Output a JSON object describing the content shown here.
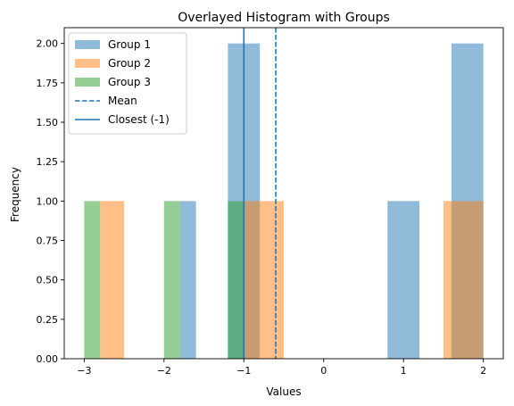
{
  "chart_data": {
    "type": "bar",
    "title": "Overlayed Histogram with Groups",
    "xlabel": "Values",
    "ylabel": "Frequency",
    "xlim": [
      -3.25,
      2.25
    ],
    "ylim": [
      0,
      2.1
    ],
    "xticks": [
      -3,
      -2,
      -1,
      0,
      1,
      2
    ],
    "yticks": [
      0.0,
      0.25,
      0.5,
      0.75,
      1.0,
      1.25,
      1.5,
      1.75,
      2.0
    ],
    "xtick_labels": [
      "−3",
      "−2",
      "−1",
      "0",
      "1",
      "2"
    ],
    "ytick_labels": [
      "0.00",
      "0.25",
      "0.50",
      "0.75",
      "1.00",
      "1.25",
      "1.50",
      "1.75",
      "2.00"
    ],
    "legend_position": "top-left",
    "grid": false,
    "series": [
      {
        "name": "Group 1",
        "color": "#1f77b4",
        "opacity": 0.5,
        "bins": [
          {
            "x0": -1.8,
            "x1": -1.6,
            "count": 1
          },
          {
            "x0": -1.2,
            "x1": -0.8,
            "count": 2
          },
          {
            "x0": 0.8,
            "x1": 1.2,
            "count": 1
          },
          {
            "x0": 1.6,
            "x1": 2.0,
            "count": 2
          }
        ]
      },
      {
        "name": "Group 2",
        "color": "#ff7f0e",
        "opacity": 0.5,
        "bins": [
          {
            "x0": -2.8,
            "x1": -2.5,
            "count": 1
          },
          {
            "x0": -1.0,
            "x1": -0.5,
            "count": 1
          },
          {
            "x0": 1.5,
            "x1": 2.0,
            "count": 1
          }
        ]
      },
      {
        "name": "Group 3",
        "color": "#2ca02c",
        "opacity": 0.5,
        "bins": [
          {
            "x0": -3.0,
            "x1": -2.8,
            "count": 1
          },
          {
            "x0": -2.0,
            "x1": -1.8,
            "count": 1
          },
          {
            "x0": -1.2,
            "x1": -1.0,
            "count": 1
          }
        ]
      }
    ],
    "lines": [
      {
        "name": "Mean",
        "x": -0.6,
        "style": "dashed",
        "color": "#1f77b4"
      },
      {
        "name": "Closest (-1)",
        "x": -1.0,
        "style": "solid",
        "color": "#1f77b4"
      }
    ]
  }
}
